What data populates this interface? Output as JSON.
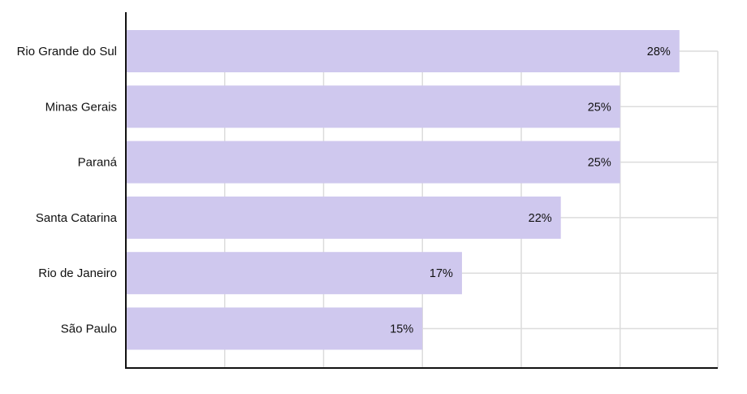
{
  "chart_data": {
    "type": "bar",
    "orientation": "horizontal",
    "categories": [
      "Rio Grande do Sul",
      "Minas Gerais",
      "Paraná",
      "Santa Catarina",
      "Rio de Janeiro",
      "São Paulo"
    ],
    "values": [
      28,
      25,
      25,
      22,
      17,
      15
    ],
    "value_labels": [
      "28%",
      "25%",
      "25%",
      "22%",
      "17%",
      "15%"
    ],
    "xlim": [
      0,
      30
    ],
    "xtick_step": 5,
    "title": "",
    "xlabel": "",
    "ylabel": "",
    "grid": true,
    "legend": "none"
  },
  "colors": {
    "bar": "#cfc8ee",
    "grid": "#dcdcdc",
    "axis": "#111111",
    "text": "#111111"
  }
}
